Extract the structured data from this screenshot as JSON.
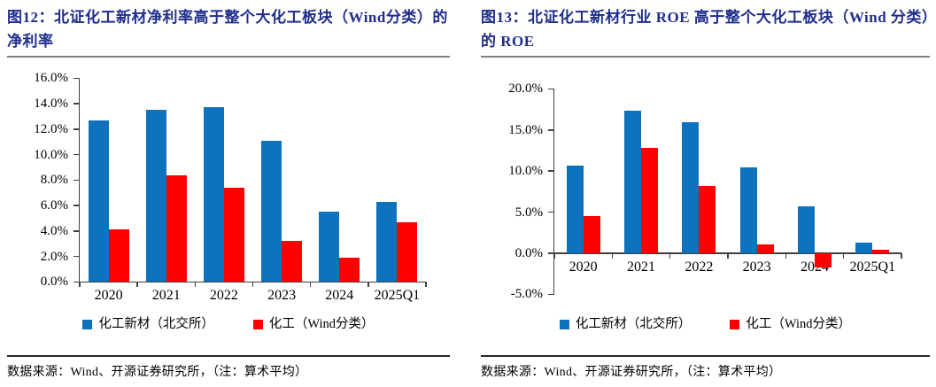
{
  "colors": {
    "title_navy": "#1F2E8C",
    "bar_blue": "#0E72BC",
    "bar_red": "#FF0000",
    "axis": "#404040"
  },
  "figures": [
    {
      "title": "图12：北证化工新材净利率高于整个大化工板块（Wind分类）的净利率",
      "source": "数据来源：Wind、开源证券研究所，（注：算术平均）"
    },
    {
      "title": "图13：北证化工新材行业 ROE 高于整个大化工板块（Wind 分类）的 ROE",
      "source": "数据来源：Wind、开源证券研究所，（注：算术平均）"
    }
  ],
  "chart_data": [
    {
      "type": "bar",
      "title": "北证化工新材净利率 vs 大化工板块净利率",
      "categories": [
        "2020",
        "2021",
        "2022",
        "2023",
        "2024",
        "2025Q1"
      ],
      "series": [
        {
          "name": "化工新材（北交所）",
          "color": "#0E72BC",
          "values": [
            12.7,
            13.5,
            13.7,
            11.1,
            5.5,
            6.3
          ]
        },
        {
          "name": "化工（Wind分类）",
          "color": "#FF0000",
          "values": [
            4.1,
            8.4,
            7.4,
            3.2,
            1.9,
            4.7
          ]
        }
      ],
      "ylim": [
        0,
        16
      ],
      "ytick_step": 2,
      "y_unit": "%",
      "grid": false,
      "legend_position": "bottom"
    },
    {
      "type": "bar",
      "title": "北证化工新材行业 ROE vs 大化工板块 ROE",
      "categories": [
        "2020",
        "2021",
        "2022",
        "2023",
        "2024",
        "2025Q1"
      ],
      "series": [
        {
          "name": "化工新材（北交所）",
          "color": "#0E72BC",
          "values": [
            10.7,
            17.4,
            15.9,
            10.4,
            5.7,
            1.3
          ]
        },
        {
          "name": "化工（Wind分类）",
          "color": "#FF0000",
          "values": [
            4.5,
            12.8,
            8.2,
            1.1,
            -1.7,
            0.4
          ]
        }
      ],
      "ylim": [
        -5,
        20
      ],
      "ytick_step": 5,
      "y_unit": "%",
      "grid": false,
      "legend_position": "bottom"
    }
  ]
}
